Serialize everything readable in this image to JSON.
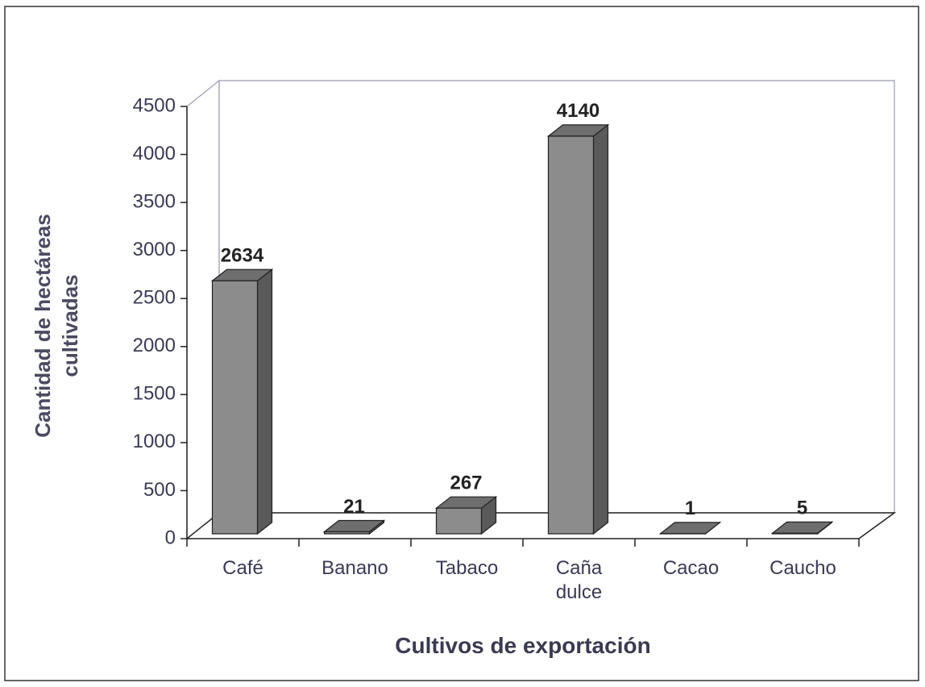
{
  "chart_data": {
    "type": "bar3d",
    "categories": [
      "Café",
      "Banano",
      "Tabaco",
      "Caña dulce",
      "Cacao",
      "Caucho"
    ],
    "values": [
      2634,
      21,
      267,
      4140,
      1,
      5
    ],
    "color": "#8c8c8c",
    "ylim": [
      0,
      4500
    ],
    "yticks": [
      0,
      500,
      1000,
      1500,
      2000,
      2500,
      3000,
      3500,
      4000,
      4500
    ],
    "ylabel": "Cantidad de hectáreas cultivadas",
    "xlabel": "Cultivos de exportación",
    "data_labels": true
  }
}
